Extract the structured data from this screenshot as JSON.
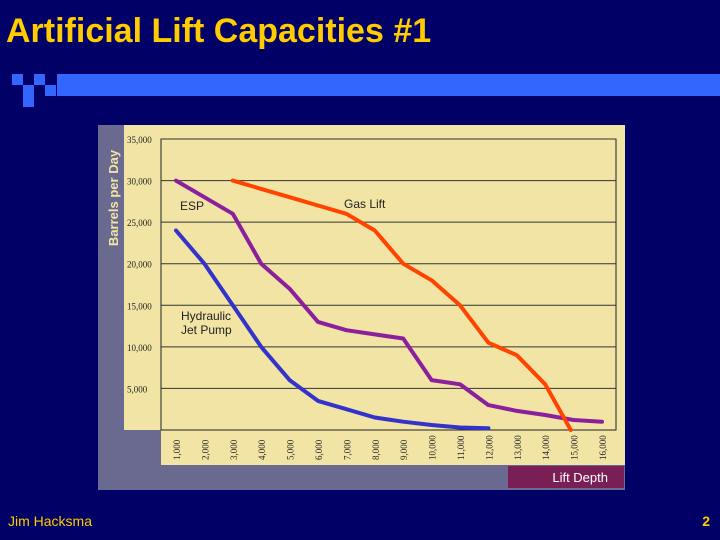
{
  "slide": {
    "title": "Artificial Lift Capacities #1",
    "author": "Jim Hacksma",
    "page_number": "2"
  },
  "colors": {
    "background": "#000066",
    "title": "#FFCC00",
    "accent_bar": "#3366FF",
    "plot_bg": "#F1E4A4",
    "frame": "#6A6A90"
  },
  "chart_data": {
    "type": "line",
    "xlabel": "Lift Depth",
    "ylabel": "Barrels per Day",
    "x_ticks": [
      "1,000",
      "2,000",
      "3,000",
      "4,000",
      "5,000",
      "6,000",
      "7,000",
      "8,000",
      "9,000",
      "10,000",
      "11,000",
      "12,000",
      "13,000",
      "14,000",
      "15,000",
      "16,000"
    ],
    "y_ticks": [
      "5,000",
      "10,000",
      "15,000",
      "20,000",
      "25,000",
      "30,000",
      "35,000"
    ],
    "xlim": [
      1000,
      16000
    ],
    "ylim": [
      0,
      35000
    ],
    "grid": true,
    "series": [
      {
        "name": "ESP",
        "color": "#8B1F9E",
        "x": [
          1000,
          2000,
          3000,
          4000,
          5000,
          6000,
          7000,
          8000,
          9000,
          10000,
          11000,
          12000,
          13000,
          14000,
          15000,
          16000
        ],
        "y": [
          30000,
          28000,
          26000,
          20000,
          17000,
          13000,
          12000,
          11500,
          11000,
          6000,
          5500,
          3000,
          2300,
          1800,
          1200,
          1000
        ]
      },
      {
        "name": "Gas Lift",
        "color": "#FF4400",
        "x": [
          3000,
          4000,
          5000,
          6000,
          7000,
          8000,
          9000,
          10000,
          11000,
          12000,
          13000,
          14000,
          14900
        ],
        "y": [
          30000,
          29000,
          28000,
          27000,
          26000,
          24000,
          20000,
          18000,
          15000,
          10500,
          9000,
          5500,
          0
        ]
      },
      {
        "name": "Hydraulic Jet Pump",
        "color": "#3333CC",
        "x": [
          1000,
          2000,
          3000,
          4000,
          5000,
          6000,
          7000,
          8000,
          9000,
          10000,
          11000,
          12000
        ],
        "y": [
          24000,
          20000,
          15000,
          10000,
          6000,
          3500,
          2500,
          1500,
          1000,
          600,
          300,
          200
        ]
      }
    ],
    "labels": {
      "esp": "ESP",
      "gas_lift": "Gas Lift",
      "hydraulic_line1": "Hydraulic",
      "hydraulic_line2": "Jet Pump"
    }
  }
}
